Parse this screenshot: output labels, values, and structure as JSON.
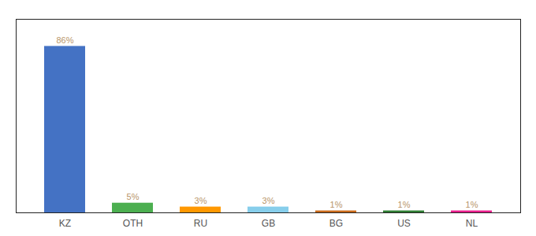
{
  "chart_data": {
    "type": "bar",
    "categories": [
      "KZ",
      "OTH",
      "RU",
      "GB",
      "BG",
      "US",
      "NL"
    ],
    "values": [
      86,
      5,
      3,
      3,
      1,
      1,
      1
    ],
    "value_labels": [
      "86%",
      "5%",
      "3%",
      "3%",
      "1%",
      "1%",
      "1%"
    ],
    "colors": [
      "#4472c4",
      "#4caf50",
      "#ff9800",
      "#87ceeb",
      "#c96a1a",
      "#2e7d32",
      "#e91e8c"
    ],
    "ylim": [
      0,
      100
    ],
    "data_labels": true,
    "tick_labels": "x"
  }
}
